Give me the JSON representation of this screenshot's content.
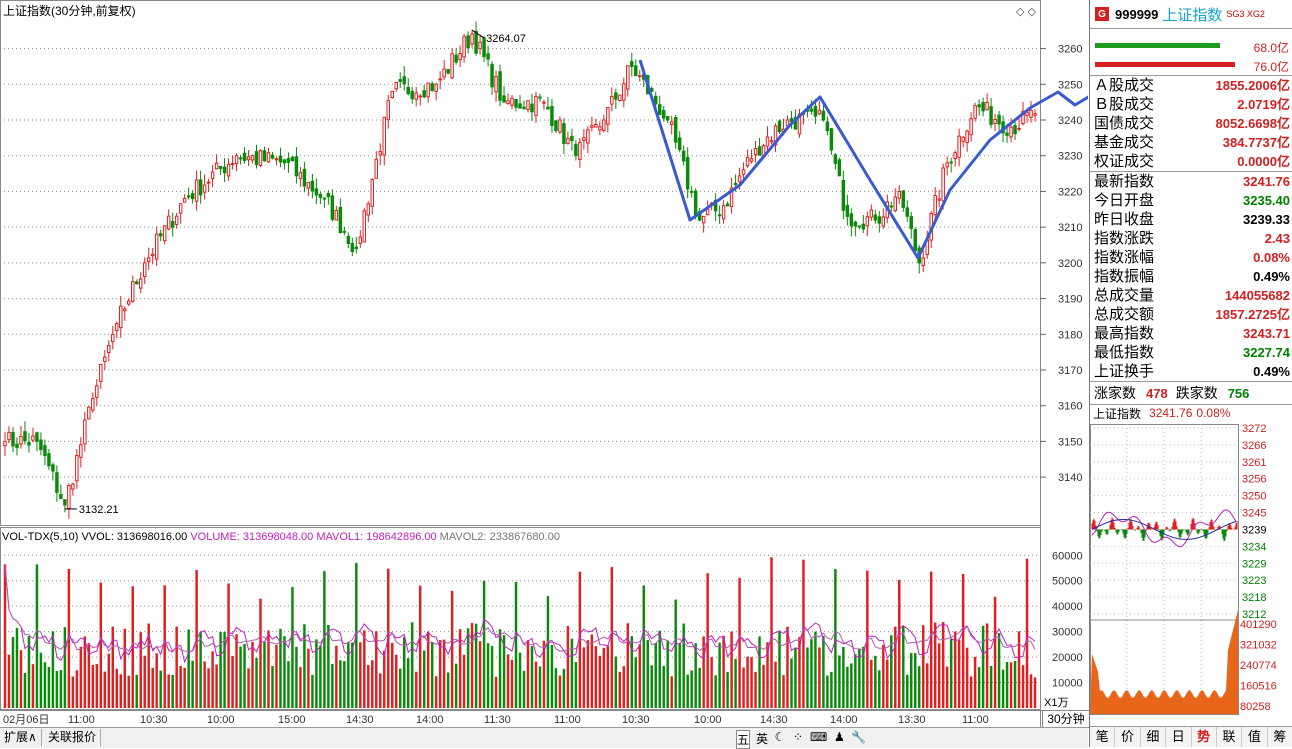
{
  "chart_title": "上证指数(30分钟,前复权)",
  "indicator_header": {
    "name": "VOL-TDX(5,10)",
    "vvol": "VVOL: 313698016.00",
    "volume": "VOLUME: 313698048.00",
    "mavol1": "MAVOL1: 198642896.00",
    "mavol2": "MAVOL2: 233867680.00"
  },
  "annotations": {
    "high": "3264.07",
    "low": "3132.21"
  },
  "time_labels": [
    "02月06日",
    "11:00",
    "10:30",
    "10:00",
    "15:00",
    "14:30",
    "14:00",
    "11:30",
    "11:00",
    "10:30",
    "10:00",
    "14:30",
    "14:00",
    "13:30",
    "11:00"
  ],
  "price_ticks": [
    "3260",
    "3250",
    "3240",
    "3230",
    "3220",
    "3210",
    "3200",
    "3190",
    "3180",
    "3170",
    "3160",
    "3150",
    "3140"
  ],
  "vol_ticks": [
    "60000",
    "50000",
    "40000",
    "30000",
    "20000",
    "10000"
  ],
  "vol_unit": "X1万",
  "period": "30分钟",
  "chart_data": {
    "type": "candlestick",
    "series_name": "上证指数",
    "ylim": [
      3128,
      3268
    ],
    "key_points": [
      {
        "i": 0,
        "close": 3150
      },
      {
        "i": 8,
        "close": 3150
      },
      {
        "i": 15,
        "close": 3132.21
      },
      {
        "i": 22,
        "close": 3162
      },
      {
        "i": 28,
        "close": 3183
      },
      {
        "i": 35,
        "close": 3200
      },
      {
        "i": 45,
        "close": 3218
      },
      {
        "i": 58,
        "close": 3230
      },
      {
        "i": 70,
        "close": 3228
      },
      {
        "i": 80,
        "close": 3218
      },
      {
        "i": 88,
        "close": 3204
      },
      {
        "i": 97,
        "close": 3248
      },
      {
        "i": 108,
        "close": 3250
      },
      {
        "i": 117,
        "close": 3264.07
      },
      {
        "i": 125,
        "close": 3245
      },
      {
        "i": 135,
        "close": 3245
      },
      {
        "i": 143,
        "close": 3230
      },
      {
        "i": 150,
        "close": 3240
      },
      {
        "i": 157,
        "close": 3255
      },
      {
        "i": 166,
        "close": 3240
      },
      {
        "i": 174,
        "close": 3212
      },
      {
        "i": 180,
        "close": 3216
      },
      {
        "i": 188,
        "close": 3232
      },
      {
        "i": 196,
        "close": 3240
      },
      {
        "i": 205,
        "close": 3240
      },
      {
        "i": 211,
        "close": 3213
      },
      {
        "i": 218,
        "close": 3212
      },
      {
        "i": 224,
        "close": 3220
      },
      {
        "i": 229,
        "close": 3200
      },
      {
        "i": 236,
        "close": 3228
      },
      {
        "i": 243,
        "close": 3244
      },
      {
        "i": 252,
        "close": 3238
      },
      {
        "i": 258,
        "close": 3241.76
      }
    ],
    "volume_ylim": [
      0,
      66000
    ],
    "drawn_line": {
      "color": "#3a5bd0"
    }
  },
  "sidebar": {
    "code": "999999",
    "name": "上证指数",
    "tags": "SG3 XG2",
    "bar1_value": "68.0亿",
    "bar2_value": "76.0亿",
    "rows": [
      {
        "label": "Ａ股成交",
        "value": "1855.2006亿",
        "color": "#d02020"
      },
      {
        "label": "Ｂ股成交",
        "value": "2.0719亿",
        "color": "#d02020"
      },
      {
        "label": "国债成交",
        "value": "8052.6698亿",
        "color": "#d02020"
      },
      {
        "label": "基金成交",
        "value": "384.7737亿",
        "color": "#d02020"
      },
      {
        "label": "权证成交",
        "value": "0.0000亿",
        "color": "#d02020"
      }
    ],
    "stats": [
      {
        "label": "最新指数",
        "value": "3241.76",
        "color": "#d02020"
      },
      {
        "label": "今日开盘",
        "value": "3235.40",
        "color": "#008000"
      },
      {
        "label": "昨日收盘",
        "value": "3239.33",
        "color": "#000000"
      },
      {
        "label": "指数涨跌",
        "value": "2.43",
        "color": "#d02020"
      },
      {
        "label": "指数涨幅",
        "value": "0.08%",
        "color": "#d02020"
      },
      {
        "label": "指数振幅",
        "value": "0.49%",
        "color": "#000000"
      },
      {
        "label": "总成交量",
        "value": "144055682",
        "color": "#d02020"
      },
      {
        "label": "总成交额",
        "value": "1857.2725亿",
        "color": "#d02020"
      },
      {
        "label": "最高指数",
        "value": "3243.71",
        "color": "#d02020"
      },
      {
        "label": "最低指数",
        "value": "3227.74",
        "color": "#008000"
      },
      {
        "label": "上证换手",
        "value": "0.49%",
        "color": "#000000"
      }
    ],
    "adv_label": "涨家数",
    "adv_value": "478",
    "dec_label": "跌家数",
    "dec_value": "756",
    "mini_title": "上证指数",
    "mini_value": "3241.76",
    "mini_pct": "0.08%",
    "mini_price_ticks": [
      "3272",
      "3266",
      "3261",
      "3256",
      "3250",
      "3245",
      "3239",
      "3234",
      "3229",
      "3223",
      "3218",
      "3212"
    ],
    "mini_vol_ticks": [
      "401290",
      "321032",
      "240774",
      "160516",
      "80258"
    ],
    "tabs": [
      "笔",
      "价",
      "细",
      "日",
      "势",
      "联",
      "值",
      "筹"
    ],
    "active_tab": "势"
  },
  "bottom_bar": {
    "expand": "扩展∧",
    "related": "关联报价",
    "ime": [
      "五",
      "英",
      "☾",
      "⁘",
      "⌨",
      "♟",
      "🔧"
    ]
  }
}
